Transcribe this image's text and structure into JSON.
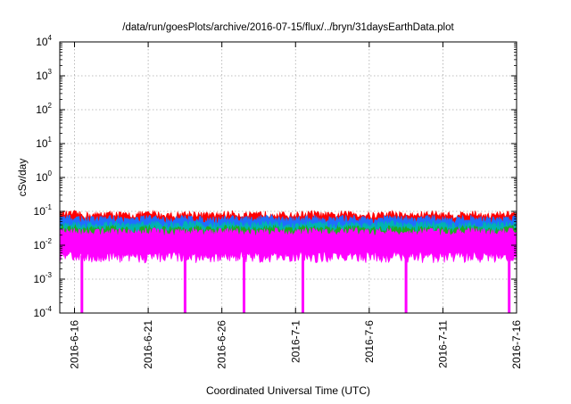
{
  "chart_data": {
    "type": "area",
    "title": "/data/run/goesPlots/archive/2016-07-15/flux/../bryn/31daysEarthData.plot",
    "xlabel": "Coordinated Universal Time (UTC)",
    "ylabel": "cSv/day",
    "y_scale": "log",
    "ylim": [
      0.0001,
      10000
    ],
    "xlim": [
      "2016-06-15",
      "2016-07-16"
    ],
    "grid": true,
    "x_ticks": [
      "2016-6-16",
      "2016-6-21",
      "2016-6-26",
      "2016-7-1",
      "2016-7-6",
      "2016-7-11",
      "2016-7-16"
    ],
    "x_tick_dates": [
      "2016-06-16",
      "2016-06-21",
      "2016-06-26",
      "2016-07-01",
      "2016-07-06",
      "2016-07-11",
      "2016-07-16"
    ],
    "y_ticks": [
      {
        "base": "10",
        "exp": "4"
      },
      {
        "base": "10",
        "exp": "3"
      },
      {
        "base": "10",
        "exp": "2"
      },
      {
        "base": "10",
        "exp": "1"
      },
      {
        "base": "10",
        "exp": "0"
      },
      {
        "base": "10",
        "exp": "-1"
      },
      {
        "base": "10",
        "exp": "-2"
      },
      {
        "base": "10",
        "exp": "-3"
      },
      {
        "base": "10",
        "exp": "-4"
      }
    ],
    "y_tick_values": [
      10000,
      1000,
      100,
      10,
      1,
      0.1,
      0.01,
      0.001,
      0.0001
    ],
    "series": [
      {
        "color": "#ff0000",
        "typical_upper": 0.08,
        "typical_lower": 0.035
      },
      {
        "color": "#1f6fff",
        "typical_upper": 0.06,
        "typical_lower": 0.025
      },
      {
        "color": "#00b3b3",
        "typical_upper": 0.04,
        "typical_lower": 0.018
      },
      {
        "color": "#22aa22",
        "typical_upper": 0.03,
        "typical_lower": 0.014
      },
      {
        "color": "#ff00ff",
        "typical_upper": 0.025,
        "typical_lower": 0.005
      }
    ],
    "dropouts": [
      "2016-06-16",
      "2016-06-23",
      "2016-06-27",
      "2016-07-01",
      "2016-07-08",
      "2016-07-15"
    ],
    "dropout_floor": 0.0001
  }
}
